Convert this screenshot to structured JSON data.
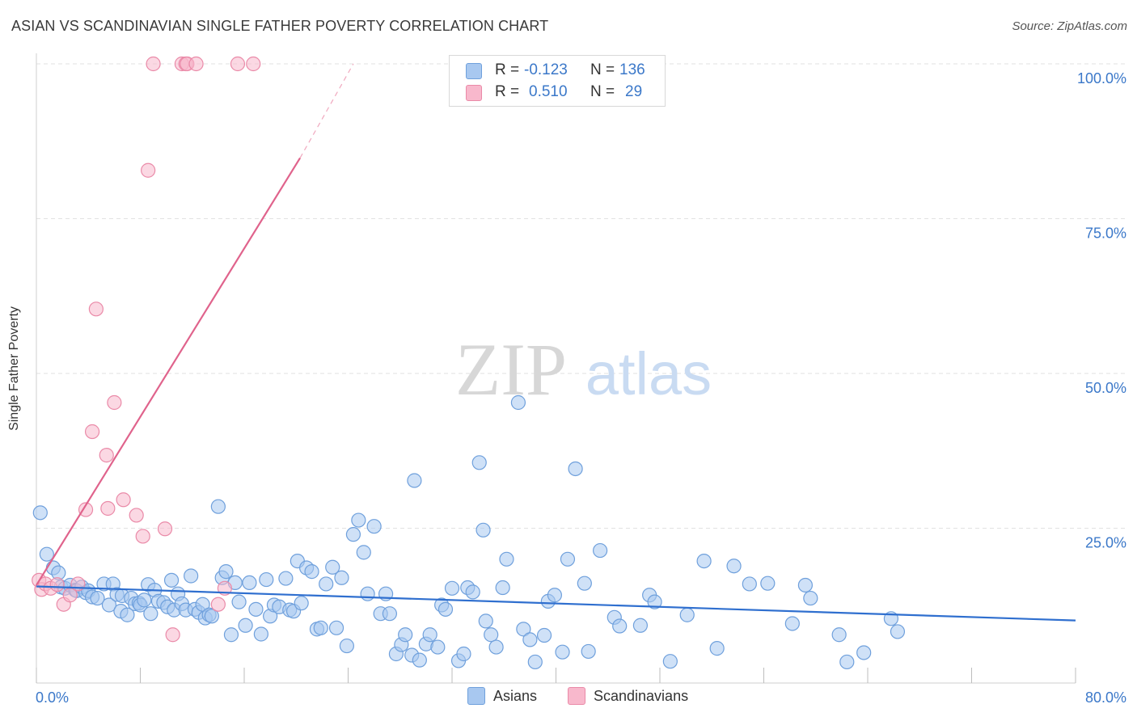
{
  "title": "ASIAN VS SCANDINAVIAN SINGLE FATHER POVERTY CORRELATION CHART",
  "source": "Source: ZipAtlas.com",
  "watermark": {
    "zip": "ZIP",
    "atlas": "atlas"
  },
  "stats": [
    {
      "r_label": "R =",
      "r_value": "-0.123",
      "n_label": "N =",
      "n_value": "136",
      "color": "#a8c8f0"
    },
    {
      "r_label": "R =",
      "r_value": "0.510",
      "n_label": "N =",
      "n_value": "29",
      "color": "#f8b8cc"
    }
  ],
  "legend": [
    {
      "label": "Asians",
      "color": "#a8c8f0"
    },
    {
      "label": "Scandinavians",
      "color": "#f8b8cc"
    }
  ],
  "chart_data": {
    "type": "scatter",
    "title": "ASIAN VS SCANDINAVIAN SINGLE FATHER POVERTY CORRELATION CHART",
    "xlabel": "",
    "ylabel": "Single Father Poverty",
    "xlim": [
      0,
      80
    ],
    "ylim": [
      0,
      100
    ],
    "x_tick_labels": [
      "0.0%",
      "80.0%"
    ],
    "y_tick_labels": [
      "25.0%",
      "50.0%",
      "75.0%",
      "100.0%"
    ],
    "y_ticks": [
      25,
      50,
      75,
      100
    ],
    "grid": true,
    "series": [
      {
        "name": "Asians",
        "color": "#a8c8f0",
        "stroke": "#6fa0dc",
        "trend": {
          "x": [
            0,
            80
          ],
          "y": [
            15.6,
            10.1
          ],
          "color": "#2f6fcf"
        },
        "points": [
          [
            0.3,
            27.5
          ],
          [
            0.8,
            20.8
          ],
          [
            1.3,
            18.6
          ],
          [
            1.7,
            17.8
          ],
          [
            1.9,
            15.5
          ],
          [
            2.2,
            15.3
          ],
          [
            2.6,
            15.8
          ],
          [
            3.0,
            15.0
          ],
          [
            3.1,
            14.9
          ],
          [
            3.5,
            15.5
          ],
          [
            3.8,
            14.6
          ],
          [
            4.0,
            14.9
          ],
          [
            4.3,
            13.9
          ],
          [
            4.7,
            13.7
          ],
          [
            5.2,
            16.0
          ],
          [
            5.6,
            12.6
          ],
          [
            5.9,
            16.0
          ],
          [
            6.2,
            14.3
          ],
          [
            6.5,
            11.6
          ],
          [
            6.6,
            14.1
          ],
          [
            7.0,
            11.0
          ],
          [
            7.3,
            13.7
          ],
          [
            7.6,
            12.8
          ],
          [
            7.9,
            12.9
          ],
          [
            8.0,
            12.6
          ],
          [
            8.3,
            13.4
          ],
          [
            8.6,
            15.9
          ],
          [
            8.8,
            11.2
          ],
          [
            9.1,
            15.0
          ],
          [
            9.4,
            13.2
          ],
          [
            9.8,
            13.0
          ],
          [
            10.1,
            12.3
          ],
          [
            10.4,
            16.6
          ],
          [
            10.6,
            11.8
          ],
          [
            10.9,
            14.4
          ],
          [
            11.2,
            12.8
          ],
          [
            11.5,
            11.8
          ],
          [
            11.9,
            17.3
          ],
          [
            12.2,
            11.9
          ],
          [
            12.5,
            11.4
          ],
          [
            12.8,
            12.7
          ],
          [
            13.0,
            10.5
          ],
          [
            13.3,
            11.0
          ],
          [
            13.5,
            10.8
          ],
          [
            14.0,
            28.5
          ],
          [
            14.3,
            17.0
          ],
          [
            14.6,
            18.0
          ],
          [
            15.0,
            7.8
          ],
          [
            15.3,
            16.2
          ],
          [
            15.6,
            13.1
          ],
          [
            16.1,
            9.3
          ],
          [
            16.4,
            16.2
          ],
          [
            16.9,
            11.9
          ],
          [
            17.3,
            7.9
          ],
          [
            17.7,
            16.7
          ],
          [
            18.0,
            10.8
          ],
          [
            18.3,
            12.6
          ],
          [
            18.7,
            12.3
          ],
          [
            19.2,
            16.9
          ],
          [
            19.5,
            11.8
          ],
          [
            19.8,
            11.6
          ],
          [
            20.1,
            19.7
          ],
          [
            20.4,
            12.9
          ],
          [
            20.8,
            18.6
          ],
          [
            21.2,
            18.0
          ],
          [
            21.6,
            8.7
          ],
          [
            21.9,
            8.9
          ],
          [
            22.3,
            16.0
          ],
          [
            22.8,
            18.7
          ],
          [
            23.1,
            8.9
          ],
          [
            23.5,
            17.0
          ],
          [
            23.9,
            6.0
          ],
          [
            24.4,
            24.0
          ],
          [
            24.8,
            26.3
          ],
          [
            25.2,
            21.1
          ],
          [
            25.5,
            14.4
          ],
          [
            26.0,
            25.3
          ],
          [
            26.5,
            11.2
          ],
          [
            26.9,
            14.4
          ],
          [
            27.2,
            11.2
          ],
          [
            27.7,
            4.7
          ],
          [
            28.1,
            6.2
          ],
          [
            28.4,
            7.8
          ],
          [
            28.9,
            4.5
          ],
          [
            29.1,
            32.7
          ],
          [
            29.5,
            3.7
          ],
          [
            30.0,
            6.3
          ],
          [
            30.3,
            7.8
          ],
          [
            30.9,
            5.8
          ],
          [
            31.2,
            12.6
          ],
          [
            31.5,
            11.9
          ],
          [
            32.0,
            15.3
          ],
          [
            32.5,
            3.6
          ],
          [
            32.9,
            4.7
          ],
          [
            33.2,
            15.4
          ],
          [
            33.6,
            14.7
          ],
          [
            34.1,
            35.6
          ],
          [
            34.4,
            24.7
          ],
          [
            34.6,
            10.0
          ],
          [
            35.0,
            7.8
          ],
          [
            35.4,
            5.8
          ],
          [
            35.9,
            15.4
          ],
          [
            36.2,
            20.0
          ],
          [
            37.1,
            45.3
          ],
          [
            37.5,
            8.7
          ],
          [
            38.0,
            7.0
          ],
          [
            38.4,
            3.4
          ],
          [
            39.1,
            7.7
          ],
          [
            39.4,
            13.2
          ],
          [
            39.9,
            14.2
          ],
          [
            40.5,
            5.0
          ],
          [
            40.9,
            20.0
          ],
          [
            41.5,
            34.6
          ],
          [
            42.2,
            16.1
          ],
          [
            42.5,
            5.1
          ],
          [
            43.4,
            21.4
          ],
          [
            44.5,
            10.6
          ],
          [
            44.9,
            9.2
          ],
          [
            46.5,
            9.3
          ],
          [
            47.2,
            14.2
          ],
          [
            47.6,
            13.1
          ],
          [
            48.8,
            3.5
          ],
          [
            50.1,
            11.0
          ],
          [
            51.4,
            19.7
          ],
          [
            52.4,
            5.6
          ],
          [
            53.7,
            18.9
          ],
          [
            54.9,
            16.0
          ],
          [
            56.3,
            16.1
          ],
          [
            58.2,
            9.6
          ],
          [
            59.2,
            15.8
          ],
          [
            59.6,
            13.7
          ],
          [
            61.8,
            7.8
          ],
          [
            62.4,
            3.4
          ],
          [
            63.7,
            4.9
          ],
          [
            65.8,
            10.4
          ],
          [
            66.3,
            8.3
          ]
        ]
      },
      {
        "name": "Scandinavians",
        "color": "#f8b8cc",
        "stroke": "#ea8aa8",
        "trend": {
          "x": [
            0,
            20.3
          ],
          "y": [
            15.8,
            84.8
          ],
          "dash_to": [
            24.4,
            100.0
          ],
          "color": "#e0638c"
        },
        "points": [
          [
            0.2,
            16.6
          ],
          [
            0.4,
            15.1
          ],
          [
            0.7,
            16.0
          ],
          [
            1.1,
            15.3
          ],
          [
            1.6,
            15.9
          ],
          [
            2.1,
            12.7
          ],
          [
            2.6,
            14.2
          ],
          [
            3.2,
            16.0
          ],
          [
            3.8,
            28.0
          ],
          [
            4.3,
            40.6
          ],
          [
            4.6,
            60.4
          ],
          [
            5.4,
            36.8
          ],
          [
            5.5,
            28.2
          ],
          [
            6.0,
            45.3
          ],
          [
            6.7,
            29.6
          ],
          [
            7.7,
            27.1
          ],
          [
            8.2,
            23.7
          ],
          [
            8.6,
            82.8
          ],
          [
            9.0,
            100.0
          ],
          [
            9.9,
            24.9
          ],
          [
            10.5,
            7.8
          ],
          [
            11.2,
            100.0
          ],
          [
            11.5,
            100.0
          ],
          [
            11.6,
            100.0
          ],
          [
            12.3,
            100.0
          ],
          [
            14.0,
            12.7
          ],
          [
            14.5,
            15.3
          ],
          [
            15.5,
            100.0
          ],
          [
            16.7,
            100.0
          ]
        ]
      }
    ]
  }
}
